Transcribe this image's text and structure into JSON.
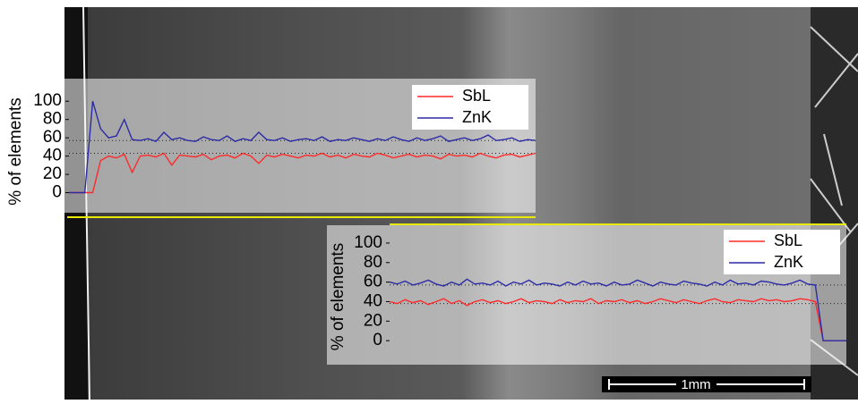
{
  "chart_data": [
    {
      "type": "line",
      "ylabel": "% of elements",
      "ylim": [
        -20,
        110
      ],
      "yticks": [
        0,
        20,
        40,
        60,
        80,
        100
      ],
      "legend": "upper right",
      "ref_lines": [
        57,
        43
      ],
      "series": [
        {
          "name": "SbL",
          "color": "#ff2a2a",
          "values": [
            0,
            0,
            0,
            0,
            35,
            40,
            38,
            42,
            22,
            40,
            41,
            39,
            43,
            30,
            41,
            40,
            39,
            42,
            36,
            40,
            41,
            38,
            43,
            40,
            32,
            41,
            39,
            42,
            40,
            38,
            41,
            40,
            43,
            39,
            41,
            38,
            42,
            40,
            39,
            43,
            41,
            38,
            40,
            42,
            39,
            41,
            40,
            37,
            42,
            40,
            41,
            39,
            43,
            40,
            38,
            41,
            42,
            39,
            41,
            43
          ]
        },
        {
          "name": "ZnK",
          "color": "#2b2ba6",
          "values": [
            0,
            0,
            0,
            100,
            70,
            60,
            62,
            80,
            58,
            57,
            59,
            56,
            66,
            58,
            60,
            57,
            56,
            61,
            58,
            57,
            62,
            56,
            59,
            57,
            66,
            58,
            57,
            60,
            56,
            58,
            59,
            57,
            61,
            56,
            58,
            57,
            60,
            58,
            56,
            59,
            57,
            61,
            58,
            56,
            60,
            57,
            59,
            62,
            56,
            58,
            60,
            57,
            59,
            63,
            57,
            58,
            60,
            56,
            58,
            57
          ]
        }
      ]
    },
    {
      "type": "line",
      "ylabel": "% of elements",
      "ylim": [
        -20,
        110
      ],
      "yticks": [
        0,
        20,
        40,
        60,
        80,
        100
      ],
      "legend": "upper right",
      "ref_lines": [
        57,
        38
      ],
      "series": [
        {
          "name": "SbL",
          "color": "#ff2a2a",
          "values": [
            40,
            38,
            42,
            39,
            41,
            37,
            40,
            43,
            38,
            41,
            36,
            40,
            42,
            39,
            41,
            38,
            40,
            43,
            39,
            41,
            40,
            38,
            42,
            39,
            41,
            40,
            43,
            38,
            41,
            40,
            42,
            39,
            41,
            38,
            40,
            43,
            41,
            39,
            42,
            40,
            38,
            41,
            43,
            40,
            39,
            42,
            41,
            40,
            43,
            41,
            42,
            40,
            41,
            43,
            42,
            40,
            0,
            0,
            0,
            0
          ]
        },
        {
          "name": "ZnK",
          "color": "#2b2ba6",
          "values": [
            60,
            58,
            61,
            57,
            59,
            62,
            58,
            56,
            60,
            57,
            63,
            58,
            59,
            57,
            61,
            56,
            60,
            58,
            62,
            57,
            59,
            58,
            56,
            60,
            57,
            61,
            58,
            59,
            56,
            60,
            57,
            58,
            62,
            59,
            56,
            60,
            58,
            57,
            61,
            59,
            58,
            56,
            60,
            57,
            62,
            58,
            59,
            57,
            61,
            60,
            58,
            57,
            59,
            62,
            58,
            57,
            0,
            0,
            0,
            0
          ]
        }
      ]
    }
  ],
  "image": {
    "scale_bar": "1mm"
  }
}
